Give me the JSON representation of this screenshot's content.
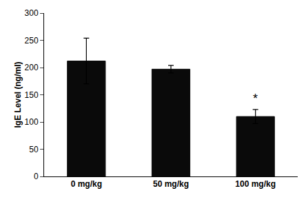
{
  "chart_data": {
    "type": "bar",
    "categories": [
      "0 mg/kg",
      "50 mg/kg",
      "100 mg/kg"
    ],
    "values": [
      212,
      197,
      110
    ],
    "errors": [
      42,
      7,
      13
    ],
    "color": "#0a0a0a",
    "ylabel": "IgE Level (ng/ml)",
    "ylim": [
      0,
      300
    ],
    "yticks": [
      0,
      50,
      100,
      150,
      200,
      250,
      300
    ],
    "grid": false,
    "annotations": [
      {
        "category": "100 mg/kg",
        "text": "*"
      }
    ]
  }
}
